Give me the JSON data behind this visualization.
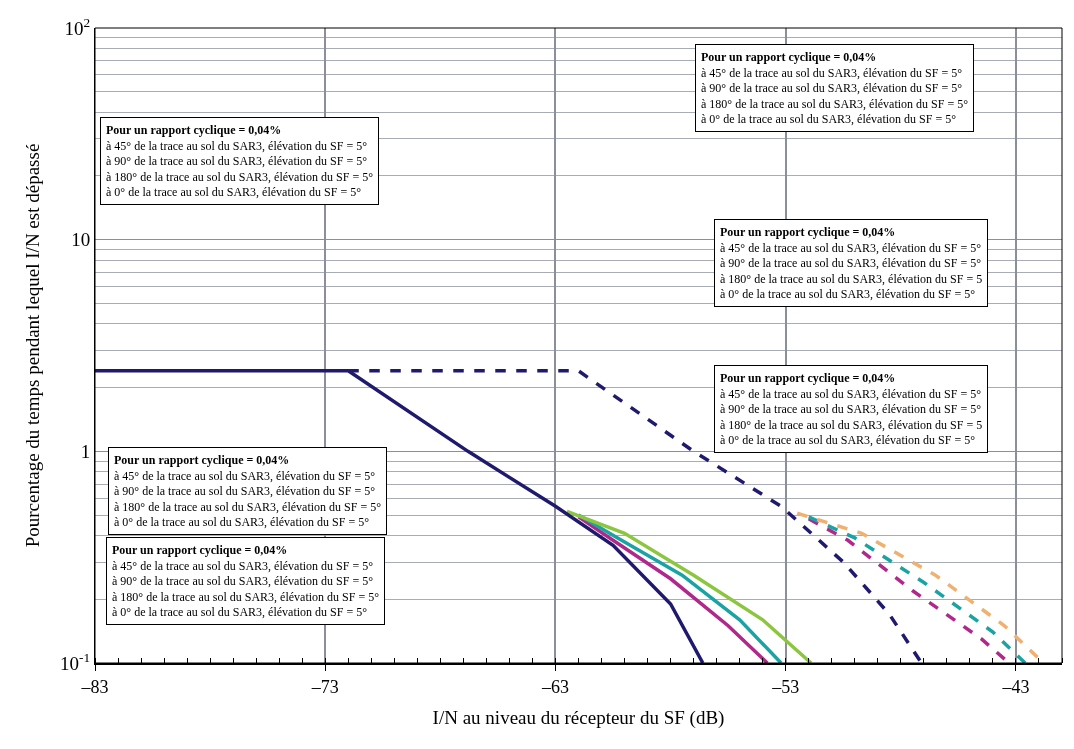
{
  "chart_data": {
    "type": "line",
    "xlabel": "I/N au niveau du récepteur du SF (dB)",
    "ylabel": "Pourcentage du temps pendant lequel I/N est dépassé",
    "log": "y",
    "grid": true,
    "marker": "none",
    "xlim": [
      -83,
      -41
    ],
    "xticks": [
      {
        "value": -83,
        "label": "–83"
      },
      {
        "value": -73,
        "label": "–73"
      },
      {
        "value": -63,
        "label": "–63"
      },
      {
        "value": -53,
        "label": "–53"
      },
      {
        "value": -43,
        "label": "–43"
      }
    ],
    "ylim": [
      0.1,
      100
    ],
    "yticks": [
      {
        "value": 0.1,
        "label": "10$^{-1}$"
      },
      1,
      10,
      {
        "value": 100,
        "label": "10$^{2}$"
      }
    ],
    "series": [
      {
        "color": "#b0288a",
        "line_style": "solid",
        "x": [
          -62,
          -60.5,
          -58,
          -55.5,
          -53.8
        ],
        "values": [
          0.49,
          0.38,
          0.25,
          0.15,
          0.1
        ]
      },
      {
        "color": "#1aa3a3",
        "line_style": "solid",
        "x": [
          -62,
          -60.3,
          -57.5,
          -55,
          -53.2
        ],
        "values": [
          0.5,
          0.39,
          0.26,
          0.16,
          0.1
        ]
      },
      {
        "color": "#8cc63f",
        "line_style": "solid",
        "x": [
          -62.5,
          -60,
          -57,
          -54,
          -51.9
        ],
        "values": [
          0.52,
          0.41,
          0.26,
          0.16,
          0.1
        ]
      },
      {
        "color": "#b0288a",
        "line_style": "dashed",
        "x": [
          -52,
          -50.3,
          -47.5,
          -44.5,
          -43.3
        ],
        "values": [
          0.48,
          0.38,
          0.22,
          0.13,
          0.1
        ]
      },
      {
        "color": "#1aa3a3",
        "line_style": "dashed",
        "x": [
          -52,
          -50,
          -47,
          -44,
          -42.6
        ],
        "values": [
          0.49,
          0.39,
          0.24,
          0.14,
          0.1
        ]
      },
      {
        "color": "#f0b070",
        "line_style": "dashed",
        "x": [
          -52.5,
          -49.7,
          -46.5,
          -43.5,
          -41.8
        ],
        "values": [
          0.51,
          0.41,
          0.26,
          0.15,
          0.1
        ]
      },
      {
        "color": "#1f1a6e",
        "line_style": "dashed",
        "x": [
          -72,
          -62,
          -57,
          -53.2,
          -50.5,
          -48.5,
          -47.1
        ],
        "values": [
          2.4,
          2.4,
          1.0,
          0.55,
          0.3,
          0.17,
          0.1
        ]
      },
      {
        "color": "#1f1a6e",
        "line_style": "solid",
        "x": [
          -83,
          -72,
          -66.8,
          -63,
          -60.5,
          -58,
          -56.6
        ],
        "values": [
          2.4,
          2.4,
          1.0,
          0.55,
          0.36,
          0.19,
          0.1
        ]
      }
    ],
    "annotations": [
      "Pour un rapport cyclique = 0,04%\nà 45° de la trace au sol du SAR3, élévation du SF = 5°\nà 90° de la trace au sol du SAR3, élévation du SF = 5°\nà 180° de la trace au sol du SAR3, élévation du SF = 5°\nà 0° de la trace au sol du SAR3, élévation du SF = 5°",
      "Pour un rapport cyclique = 0,04%\nà 45° de la trace au sol du SAR3, élévation du SF = 5°\nà 90° de la trace au sol du SAR3, élévation du SF = 5°\nà 180° de la trace au sol du SAR3, élévation du SF = 5°\nà 0° de la trace au sol du SAR3, élévation du SF = 5°",
      "Pour un rapport cyclique = 0,04%\nà 45° de la trace au sol du SAR3, élévation du SF = 5°\nà 90° de la trace au sol du SAR3, élévation du SF = 5°\nà 180° de la trace au sol du SAR3, élévation du SF = 5\nà 0° de la trace au sol du SAR3, élévation du SF = 5°",
      "Pour un rapport cyclique = 0,04%\nà 45° de la trace au sol du SAR3, élévation du SF = 5°\nà 90° de la trace au sol du SAR3, élévation du SF = 5°\nà 180° de la trace au sol du SAR3, élévation du SF = 5\nà 0° de la trace au sol du SAR3, élévation du SF = 5°",
      "Pour un rapport cyclique = 0,04%\nà 45° de la trace au sol du SAR3, élévation du SF = 5°\nà 90° de la trace au sol du SAR3, élévation du SF = 5°\nà 180° de la trace au sol du SAR3, élévation du SF = 5°\nà 0° de la trace au sol du SAR3, élévation du SF = 5°",
      "Pour un rapport cyclique = 0,04%\nà 45° de la trace au sol du SAR3, élévation du SF = 5°\nà 90° de la trace au sol du SAR3, élévation du SF = 5°\nà 180° de la trace au sol du SAR3, élévation du SF = 5°\nà 0° de la trace au sol du SAR3, élévation du SF = 5°"
    ]
  }
}
